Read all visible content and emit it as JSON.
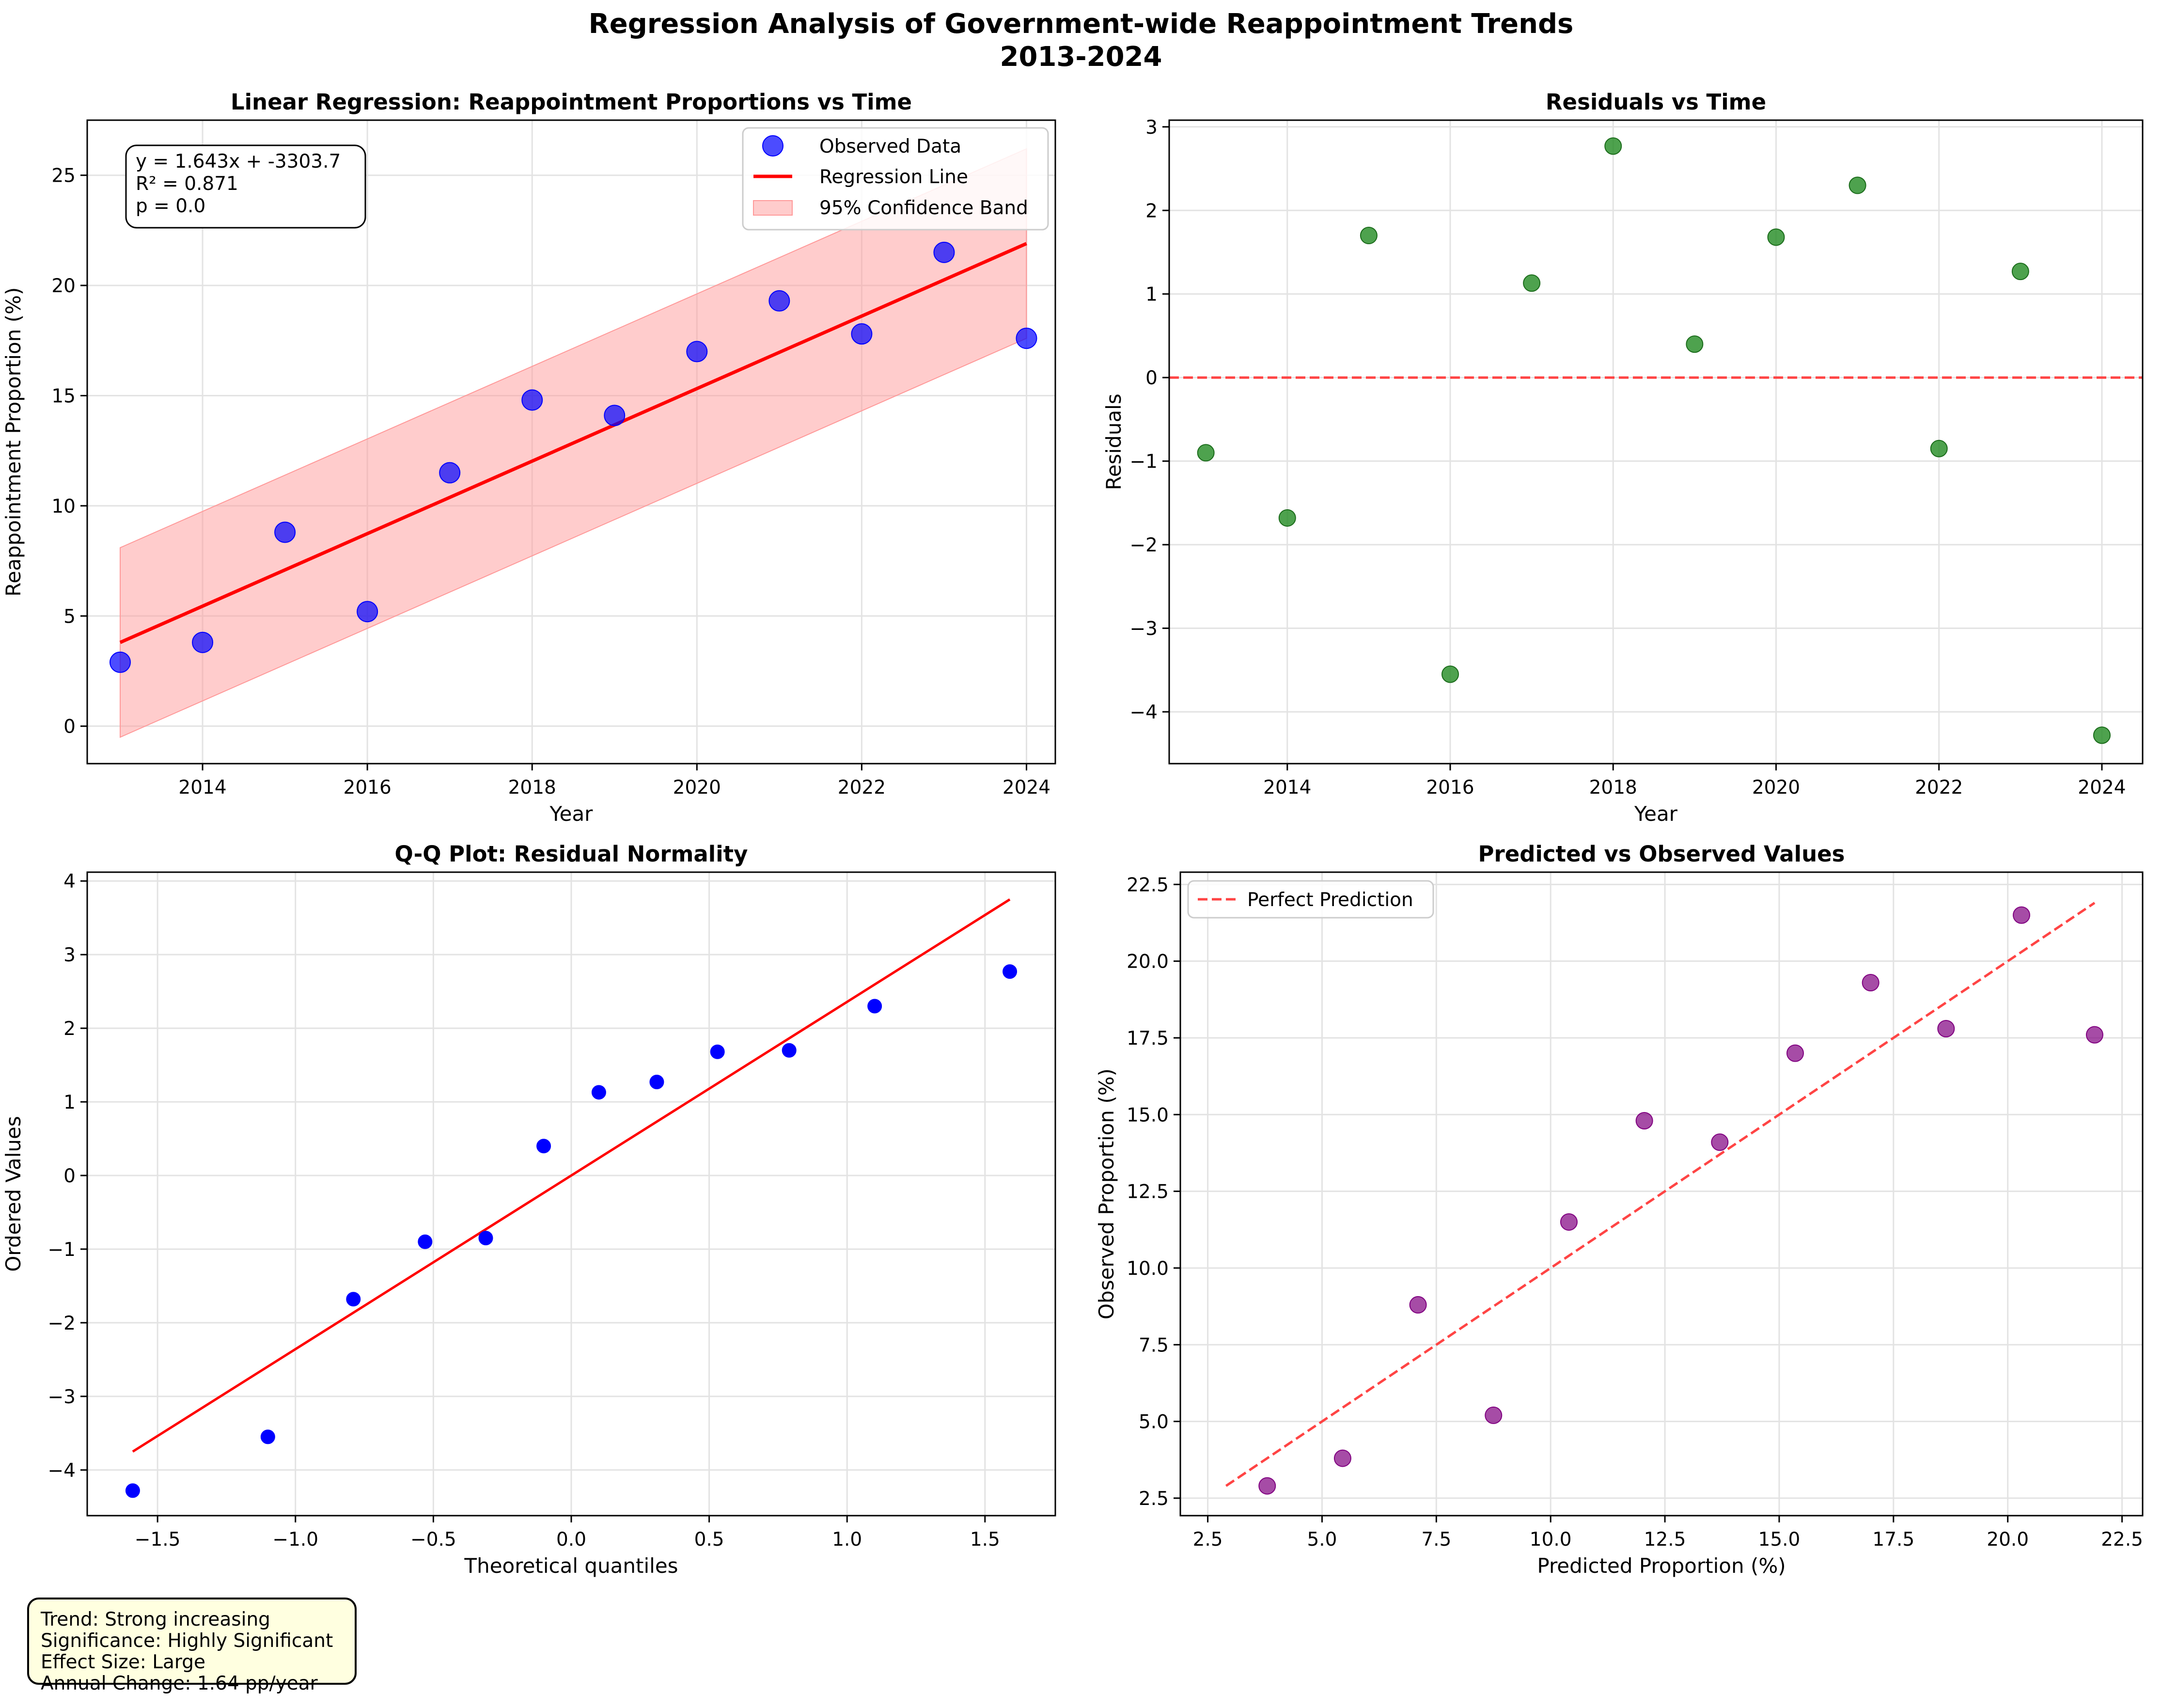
{
  "figure": {
    "title_line1": "Regression Analysis of Government-wide Reappointment Trends",
    "title_line2": "2013-2024"
  },
  "summary": {
    "trend": "Trend: Strong increasing",
    "significance": "Significance: Highly Significant",
    "effect_size": "Effect Size: Large",
    "annual_change": "Annual Change: 1.64 pp/year"
  },
  "colors": {
    "observed": "#0000ff",
    "regression": "#ff0000",
    "band": "#ff9999",
    "residual": "#228b22",
    "predicted": "#800080",
    "reference": "#ff4444",
    "summary_bg": "#ffffe0"
  },
  "chart_data": [
    {
      "type": "scatter",
      "title": "Linear Regression: Reappointment Proportions vs Time",
      "xlabel": "Year",
      "ylabel": "Reappointment Proportion (%)",
      "xlim": [
        2012.6,
        2024.35
      ],
      "ylim": [
        -1.7,
        27.5
      ],
      "xticks": [
        2014,
        2016,
        2018,
        2020,
        2022,
        2024
      ],
      "yticks": [
        0,
        5,
        10,
        15,
        20,
        25
      ],
      "grid": true,
      "legend_position": "top-right",
      "annotation": [
        "y = 1.643x + -3303.7",
        "R² = 0.871",
        "p = 0.0"
      ],
      "series": [
        {
          "name": "Observed Data",
          "kind": "scatter",
          "x": [
            2013,
            2014,
            2015,
            2016,
            2017,
            2018,
            2019,
            2020,
            2021,
            2022,
            2023,
            2024
          ],
          "y": [
            2.9,
            3.8,
            8.8,
            5.2,
            11.5,
            14.8,
            14.1,
            17.0,
            19.3,
            17.8,
            21.5,
            17.6
          ]
        },
        {
          "name": "Regression Line",
          "kind": "line",
          "x": [
            2013,
            2024
          ],
          "y": [
            3.8,
            21.9
          ]
        },
        {
          "name": "95% Confidence Band",
          "kind": "band",
          "x": [
            2013,
            2024
          ],
          "lower": [
            -0.5,
            17.6
          ],
          "upper": [
            8.1,
            26.2
          ]
        }
      ]
    },
    {
      "type": "scatter",
      "title": "Residuals vs Time",
      "xlabel": "Year",
      "ylabel": "Residuals",
      "xlim": [
        2012.55,
        2024.5
      ],
      "ylim": [
        -4.62,
        3.08
      ],
      "xticks": [
        2014,
        2016,
        2018,
        2020,
        2022,
        2024
      ],
      "yticks": [
        -4,
        -3,
        -2,
        -1,
        0,
        1,
        2,
        3
      ],
      "yticklabels": [
        "−4",
        "−3",
        "−2",
        "−1",
        "0",
        "1",
        "2",
        "3"
      ],
      "grid": true,
      "reference_line": 0,
      "series": [
        {
          "kind": "scatter",
          "x": [
            2013,
            2014,
            2015,
            2016,
            2017,
            2018,
            2019,
            2020,
            2021,
            2022,
            2023,
            2024
          ],
          "y": [
            -0.9,
            -1.68,
            1.7,
            -3.55,
            1.13,
            2.77,
            0.4,
            1.68,
            2.3,
            -0.85,
            1.27,
            -4.28
          ]
        }
      ]
    },
    {
      "type": "scatter",
      "title": "Q-Q Plot: Residual Normality",
      "xlabel": "Theoretical quantiles",
      "ylabel": "Ordered Values",
      "xlim": [
        -1.755,
        1.755
      ],
      "ylim": [
        -4.62,
        4.12
      ],
      "xticks": [
        -1.5,
        -1.0,
        -0.5,
        0.0,
        0.5,
        1.0,
        1.5
      ],
      "xticklabels": [
        "−1.5",
        "−1.0",
        "−0.5",
        "0.0",
        "0.5",
        "1.0",
        "1.5"
      ],
      "yticks": [
        -4,
        -3,
        -2,
        -1,
        0,
        1,
        2,
        3,
        4
      ],
      "yticklabels": [
        "−4",
        "−3",
        "−2",
        "−1",
        "0",
        "1",
        "2",
        "3",
        "4"
      ],
      "grid": true,
      "series": [
        {
          "kind": "scatter",
          "x": [
            -1.59,
            -1.1,
            -0.79,
            -0.53,
            -0.31,
            -0.1,
            0.1,
            0.31,
            0.53,
            0.79,
            1.1,
            1.59
          ],
          "y": [
            -4.28,
            -3.55,
            -1.68,
            -0.9,
            -0.85,
            0.4,
            1.13,
            1.27,
            1.68,
            1.7,
            2.3,
            2.77
          ]
        },
        {
          "kind": "line",
          "x": [
            -1.59,
            1.59
          ],
          "y": [
            -3.75,
            3.75
          ]
        }
      ]
    },
    {
      "type": "scatter",
      "title": "Predicted vs Observed Values",
      "xlabel": "Predicted Proportion (%)",
      "ylabel": "Observed Proportion (%)",
      "xlim": [
        1.9,
        22.95
      ],
      "ylim": [
        1.93,
        22.9
      ],
      "xticks": [
        2.5,
        5.0,
        7.5,
        10.0,
        12.5,
        15.0,
        17.5,
        20.0,
        22.5
      ],
      "xticklabels": [
        "2.5",
        "5.0",
        "7.5",
        "10.0",
        "12.5",
        "15.0",
        "17.5",
        "20.0",
        "22.5"
      ],
      "yticks": [
        2.5,
        5.0,
        7.5,
        10.0,
        12.5,
        15.0,
        17.5,
        20.0,
        22.5
      ],
      "yticklabels": [
        "2.5",
        "5.0",
        "7.5",
        "10.0",
        "12.5",
        "15.0",
        "17.5",
        "20.0",
        "22.5"
      ],
      "grid": true,
      "legend_position": "top-left",
      "series": [
        {
          "kind": "scatter",
          "x": [
            3.8,
            5.45,
            7.1,
            8.75,
            10.4,
            12.05,
            13.7,
            15.35,
            17.0,
            18.65,
            20.3,
            21.9
          ],
          "y": [
            2.9,
            3.8,
            8.8,
            5.2,
            11.5,
            14.8,
            14.1,
            17.0,
            19.3,
            17.8,
            21.5,
            17.6
          ]
        },
        {
          "name": "Perfect Prediction",
          "kind": "dashed-line",
          "x": [
            2.9,
            21.9
          ],
          "y": [
            2.9,
            21.9
          ]
        }
      ]
    }
  ]
}
